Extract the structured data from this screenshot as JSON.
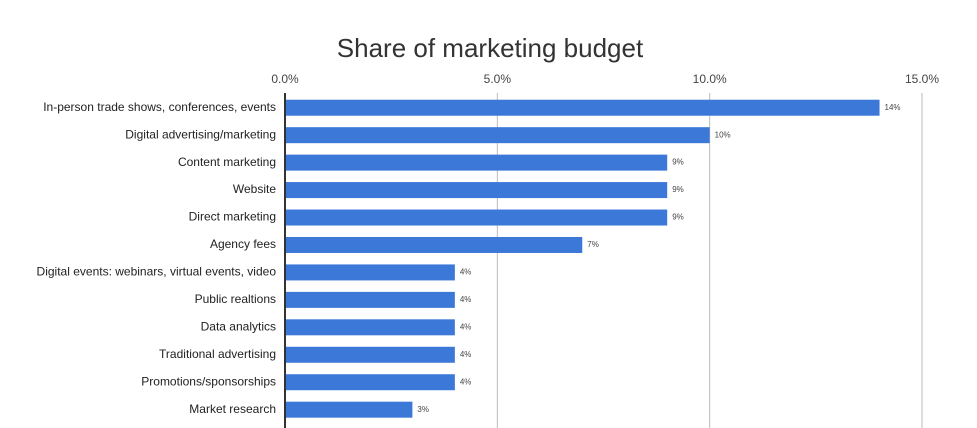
{
  "chart_data": {
    "type": "hbar",
    "title": "Share of marketing budget",
    "categories": [
      "In-person trade shows, conferences, events",
      "Digital advertising/marketing",
      "Content marketing",
      "Website",
      "Direct marketing",
      "Agency fees",
      "Digital events: webinars, virtual events, video",
      "Public realtions",
      "Data analytics",
      "Traditional advertising",
      "Promotions/sponsorships",
      "Market research"
    ],
    "values": [
      14,
      10,
      9,
      9,
      9,
      7,
      4,
      4,
      4,
      4,
      4,
      3
    ],
    "value_labels": [
      "14%",
      "10%",
      "9%",
      "9%",
      "9%",
      "7%",
      "4%",
      "4%",
      "4%",
      "4%",
      "4%",
      "3%"
    ],
    "color": "#3c78d8",
    "xlim": [
      0,
      15
    ],
    "xticks": [
      {
        "value": 0,
        "label": "0.0%"
      },
      {
        "value": 5,
        "label": "5.0%"
      },
      {
        "value": 10,
        "label": "10.0%"
      },
      {
        "value": 15,
        "label": "15.0%"
      }
    ],
    "grid": true
  }
}
